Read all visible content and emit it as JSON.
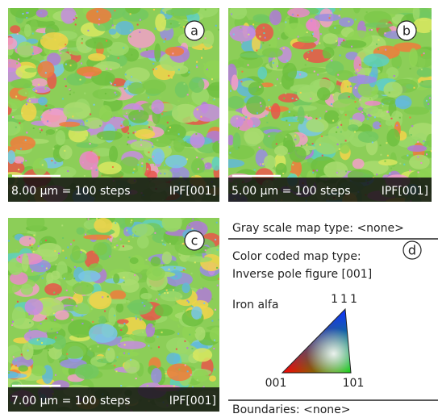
{
  "panels": [
    {
      "label": "a",
      "scale": "8.00 μm = 100 steps",
      "map": "IPF[001]"
    },
    {
      "label": "b",
      "scale": "5.00 μm = 100 steps",
      "map": "IPF[001]"
    },
    {
      "label": "c",
      "scale": "7.00 μm = 100 steps",
      "map": "IPF[001]"
    }
  ],
  "legend": {
    "label": "d",
    "gray_scale": "Gray scale map type: <none>",
    "color_coded": [
      "Color coded map type:",
      "Inverse pole figure [001]"
    ],
    "phase": "Iron alfa",
    "corner_111": "111",
    "corner_001": "001",
    "corner_101": "101",
    "boundaries": "Boundaries: <none>"
  }
}
